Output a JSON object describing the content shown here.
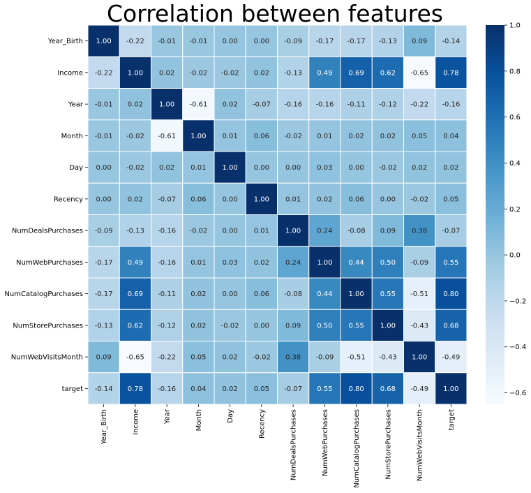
{
  "chart_data": {
    "type": "heatmap",
    "title": "Correlation between features",
    "labels": [
      "Year_Birth",
      "Income",
      "Year",
      "Month",
      "Day",
      "Recency",
      "NumDealsPurchases",
      "NumWebPurchases",
      "NumCatalogPurchases",
      "NumStorePurchases",
      "NumWebVisitsMonth",
      "target"
    ],
    "matrix": [
      [
        1.0,
        -0.22,
        -0.01,
        -0.01,
        0.0,
        -0.0,
        -0.09,
        -0.17,
        -0.17,
        -0.13,
        0.09,
        -0.14
      ],
      [
        -0.22,
        1.0,
        0.02,
        -0.02,
        -0.02,
        0.02,
        -0.13,
        0.49,
        0.69,
        0.62,
        -0.65,
        0.78
      ],
      [
        -0.01,
        0.02,
        1.0,
        -0.61,
        0.02,
        -0.07,
        -0.16,
        -0.16,
        -0.11,
        -0.12,
        -0.22,
        -0.16
      ],
      [
        -0.01,
        -0.02,
        -0.61,
        1.0,
        0.01,
        0.06,
        -0.02,
        0.01,
        0.02,
        0.02,
        0.05,
        0.04
      ],
      [
        0.0,
        -0.02,
        0.02,
        0.01,
        1.0,
        0.0,
        0.0,
        0.03,
        -0.0,
        -0.02,
        0.02,
        0.02
      ],
      [
        -0.0,
        0.02,
        -0.07,
        0.06,
        0.0,
        1.0,
        0.01,
        0.02,
        0.06,
        0.0,
        -0.02,
        0.05
      ],
      [
        -0.09,
        -0.13,
        -0.16,
        -0.02,
        0.0,
        0.01,
        1.0,
        0.24,
        -0.08,
        0.09,
        0.38,
        -0.07
      ],
      [
        -0.17,
        0.49,
        -0.16,
        0.01,
        0.03,
        0.02,
        0.24,
        1.0,
        0.44,
        0.5,
        -0.09,
        0.55
      ],
      [
        -0.17,
        0.69,
        -0.11,
        0.02,
        -0.0,
        0.06,
        -0.08,
        0.44,
        1.0,
        0.55,
        -0.51,
        0.8
      ],
      [
        -0.13,
        0.62,
        -0.12,
        0.02,
        -0.02,
        0.0,
        0.09,
        0.5,
        0.55,
        1.0,
        -0.43,
        0.68
      ],
      [
        0.09,
        -0.65,
        -0.22,
        0.05,
        0.02,
        -0.02,
        0.38,
        -0.09,
        -0.51,
        -0.43,
        1.0,
        -0.49
      ],
      [
        -0.14,
        0.78,
        -0.16,
        0.04,
        0.02,
        0.05,
        -0.07,
        0.55,
        0.8,
        0.68,
        -0.49,
        1.0
      ]
    ],
    "colorbar": {
      "min": -0.65,
      "max": 1.0,
      "ticks": [
        1.0,
        0.8,
        0.6,
        0.4,
        0.2,
        0.0,
        -0.2,
        -0.4,
        -0.6
      ],
      "tick_labels": [
        "1.0",
        "0.8",
        "0.6",
        "0.4",
        "0.2",
        "0.0",
        "−0.2",
        "−0.4",
        "−0.6"
      ]
    },
    "colormap": "Blues",
    "annotate": true,
    "cell_border_color": "#ffffff"
  }
}
